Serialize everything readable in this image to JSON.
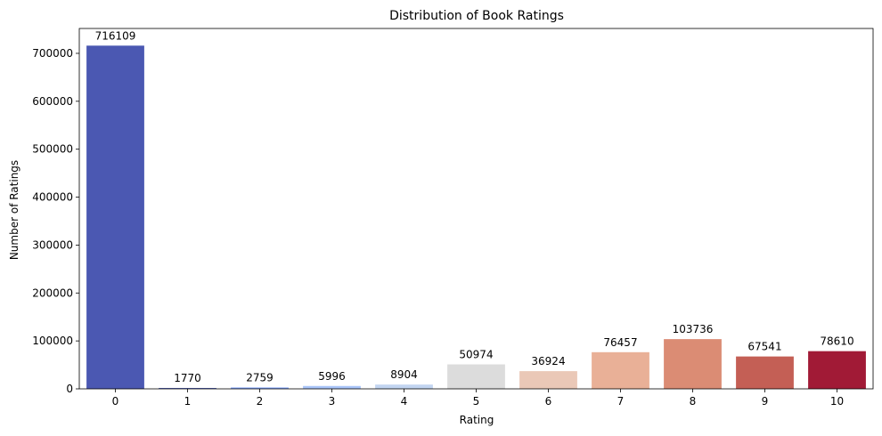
{
  "chart_data": {
    "type": "bar",
    "title": "Distribution of Book Ratings",
    "xlabel": "Rating",
    "ylabel": "Number of Ratings",
    "categories": [
      "0",
      "1",
      "2",
      "3",
      "4",
      "5",
      "6",
      "7",
      "8",
      "9",
      "10"
    ],
    "values": [
      716109,
      1770,
      2759,
      5996,
      8904,
      50974,
      36924,
      76457,
      103736,
      67541,
      78610
    ],
    "data_labels": [
      "716109",
      "1770",
      "2759",
      "5996",
      "8904",
      "50974",
      "36924",
      "76457",
      "103736",
      "67541",
      "78610"
    ],
    "colors": [
      "#4b58b2",
      "#4a5dba",
      "#7b9ff9",
      "#a9c5f9",
      "#c2d5f1",
      "#dcdcdc",
      "#eac8b7",
      "#e9b097",
      "#db8c74",
      "#c45f55",
      "#a11a36"
    ],
    "yticks": [
      0,
      100000,
      200000,
      300000,
      400000,
      500000,
      600000,
      700000
    ],
    "ytick_labels": [
      "0",
      "100000",
      "200000",
      "300000",
      "400000",
      "500000",
      "600000",
      "700000"
    ],
    "ylim": [
      0,
      751914
    ],
    "grid": false,
    "legend": false
  }
}
